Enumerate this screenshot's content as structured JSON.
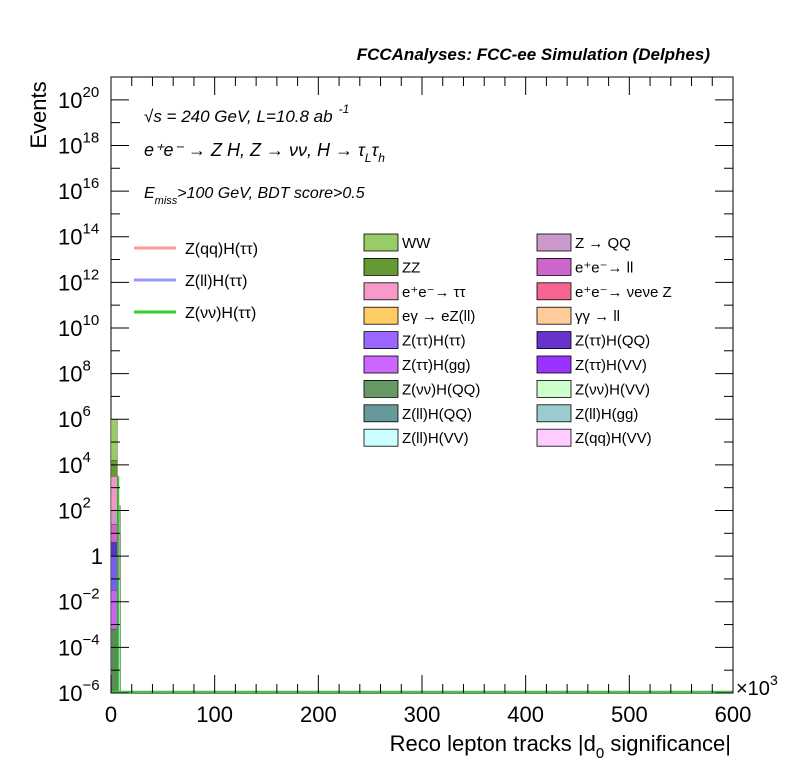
{
  "chart_data": {
    "type": "histogram",
    "title": "FCCAnalyses: FCC-ee Simulation (Delphes)",
    "xlabel": "Reco lepton tracks |d0 significance|",
    "xlabel_parts": {
      "pre": "Reco lepton tracks |d",
      "sub": "0",
      "post": " significance|"
    },
    "ylabel": "Events",
    "x_multiplier": "×10",
    "x_multiplier_exp": "3",
    "xlim": [
      0,
      600
    ],
    "ylim_log10": [
      -6,
      21
    ],
    "log_y": true,
    "x_ticks": [
      "0",
      "100",
      "200",
      "300",
      "400",
      "500",
      "600"
    ],
    "y_ticks": [
      {
        "exp": -6,
        "label": "10",
        "sup": "−6"
      },
      {
        "exp": -4,
        "label": "10",
        "sup": "−4"
      },
      {
        "exp": -2,
        "label": "10",
        "sup": "−2"
      },
      {
        "exp": 0,
        "label": "1",
        "sup": ""
      },
      {
        "exp": 2,
        "label": "10",
        "sup": "2"
      },
      {
        "exp": 4,
        "label": "10",
        "sup": "4"
      },
      {
        "exp": 6,
        "label": "10",
        "sup": "6"
      },
      {
        "exp": 8,
        "label": "10",
        "sup": "8"
      },
      {
        "exp": 10,
        "label": "10",
        "sup": "10"
      },
      {
        "exp": 12,
        "label": "10",
        "sup": "12"
      },
      {
        "exp": 14,
        "label": "10",
        "sup": "14"
      },
      {
        "exp": 16,
        "label": "10",
        "sup": "16"
      },
      {
        "exp": 18,
        "label": "10",
        "sup": "18"
      },
      {
        "exp": 20,
        "label": "10",
        "sup": "20"
      }
    ],
    "annotations": {
      "energy": "√s = 240 GeV, L=10.8 ab",
      "energy_sup": "-1",
      "process": "e⁺e⁻ → Z H, Z → νν, H → τ",
      "process_sub1": "L",
      "process_tau": "τ",
      "process_sub2": "h",
      "cut_pre": "E",
      "cut_sub": "miss",
      "cut_post": ">100 GeV, BDT score>0.5"
    },
    "stack_bins": [
      {
        "x0": 0,
        "x1": 6,
        "segments": [
          {
            "name": "Z(ll)H(VV)",
            "color": "#c8fafa",
            "log10_top": -5.9
          },
          {
            "name": "Z(νν)H(QQ)",
            "color": "#5a8c5a",
            "log10_top": -3.2
          },
          {
            "name": "Z(ττ)H(gg)",
            "color": "#c864f0",
            "log10_top": -1.5
          },
          {
            "name": "Z(ττ)H(ττ)",
            "color": "#7b5cf0",
            "log10_top": 0.0
          },
          {
            "name": "Z(ττ)H(QQ)",
            "color": "#5a32c8",
            "log10_top": 0.6
          },
          {
            "name": "e⁺e⁻→ ll",
            "color": "#d264c8",
            "log10_top": 1.4
          },
          {
            "name": "Z → QQ",
            "color": "#d296c8",
            "log10_top": 2.0
          },
          {
            "name": "e⁺e⁻→ ττ",
            "color": "#f096c8",
            "log10_top": 3.5
          },
          {
            "name": "ZZ",
            "color": "#669933",
            "log10_top": 4.2
          },
          {
            "name": "WW",
            "color": "#99cc66",
            "log10_top": 6.0
          }
        ]
      },
      {
        "x0": 6,
        "x1": 9,
        "segments": [
          {
            "name": "Z(νν)H(VV)",
            "color": "#c8f5c8",
            "log10_top": -1.0
          },
          {
            "name": "e⁺e⁻→ ττ",
            "color": "#f096c8",
            "log10_top": 1.0
          },
          {
            "name": "WW",
            "color": "#99cc66",
            "log10_top": 2.2
          }
        ]
      }
    ],
    "signals": [
      {
        "name": "Z(qq)H(ττ)",
        "color": "#ff9999",
        "log10_y": -5.95
      },
      {
        "name": "Z(ll)H(ττ)",
        "color": "#9999ff",
        "log10_y": -5.95
      },
      {
        "name": "Z(νν)H(ττ)",
        "color": "#33cc33",
        "log10_y": -5.95,
        "spike": {
          "x": 7,
          "log10_top": 3.5
        }
      }
    ],
    "legend_signals": [
      "Z(qq)H(ττ)",
      "Z(ll)H(ττ)",
      "Z(νν)H(ττ)"
    ],
    "legend_backgrounds": [
      {
        "name": "WW",
        "color": "#99cc66"
      },
      {
        "name": "Z → QQ",
        "color": "#cc99cc"
      },
      {
        "name": "ZZ",
        "color": "#669933"
      },
      {
        "name": "e⁺e⁻→ ll",
        "color": "#cc66cc"
      },
      {
        "name": "e⁺e⁻→ ττ",
        "color": "#f799c9"
      },
      {
        "name": "e⁺e⁻→ νeνe Z",
        "color": "#f76690"
      },
      {
        "name": "eγ → eZ(ll)",
        "color": "#ffcc66"
      },
      {
        "name": "γγ → ll",
        "color": "#ffcc99"
      },
      {
        "name": "Z(ττ)H(ττ)",
        "color": "#9966ff"
      },
      {
        "name": "Z(ττ)H(QQ)",
        "color": "#6633cc"
      },
      {
        "name": "Z(ττ)H(gg)",
        "color": "#cc66ff"
      },
      {
        "name": "Z(ττ)H(VV)",
        "color": "#9933ff"
      },
      {
        "name": "Z(νν)H(QQ)",
        "color": "#669966"
      },
      {
        "name": "Z(νν)H(VV)",
        "color": "#ccffcc"
      },
      {
        "name": "Z(ll)H(QQ)",
        "color": "#669999"
      },
      {
        "name": "Z(ll)H(gg)",
        "color": "#99cccc"
      },
      {
        "name": "Z(ll)H(VV)",
        "color": "#ccffff"
      },
      {
        "name": "Z(qq)H(VV)",
        "color": "#ffccff"
      }
    ],
    "grid": false,
    "legend_placement": "top"
  }
}
